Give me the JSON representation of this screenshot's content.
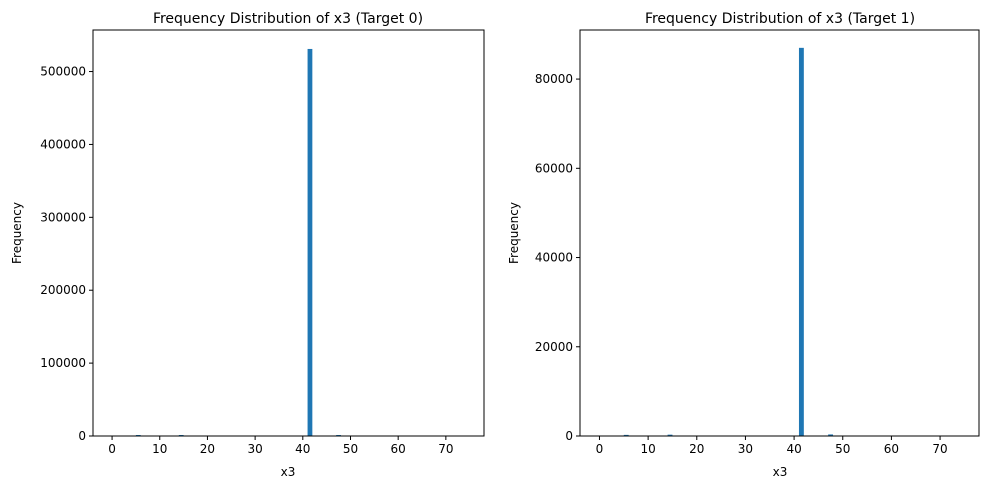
{
  "chart_data": [
    {
      "type": "bar",
      "title": "Frequency Distribution of x3 (Target 0)",
      "xlabel": "x3",
      "ylabel": "Frequency",
      "xlim": [
        -4,
        78
      ],
      "ylim": [
        0,
        557000
      ],
      "xticks": [
        0,
        10,
        20,
        30,
        40,
        50,
        60,
        70
      ],
      "xtick_labels": [
        "0",
        "10",
        "20",
        "30",
        "40",
        "50",
        "60",
        "70"
      ],
      "yticks": [
        0,
        100000,
        200000,
        300000,
        400000,
        500000
      ],
      "ytick_labels": [
        "0",
        "100000",
        "200000",
        "300000",
        "400000",
        "500000"
      ],
      "bin_width": 1,
      "color": "#1f77b4",
      "grid": false,
      "bins": [
        {
          "x": 5,
          "value": 400
        },
        {
          "x": 14,
          "value": 500
        },
        {
          "x": 41,
          "value": 531000
        },
        {
          "x": 47,
          "value": 1200
        }
      ]
    },
    {
      "type": "bar",
      "title": "Frequency Distribution of x3 (Target 1)",
      "xlabel": "x3",
      "ylabel": "Frequency",
      "xlim": [
        -4,
        78
      ],
      "ylim": [
        0,
        91000
      ],
      "xticks": [
        0,
        10,
        20,
        30,
        40,
        50,
        60,
        70
      ],
      "xtick_labels": [
        "0",
        "10",
        "20",
        "30",
        "40",
        "50",
        "60",
        "70"
      ],
      "yticks": [
        0,
        20000,
        40000,
        60000,
        80000
      ],
      "ytick_labels": [
        "0",
        "20000",
        "40000",
        "60000",
        "80000"
      ],
      "bin_width": 1,
      "color": "#1f77b4",
      "grid": false,
      "bins": [
        {
          "x": 5,
          "value": 250
        },
        {
          "x": 14,
          "value": 300
        },
        {
          "x": 41,
          "value": 87000
        },
        {
          "x": 47,
          "value": 350
        }
      ]
    }
  ]
}
